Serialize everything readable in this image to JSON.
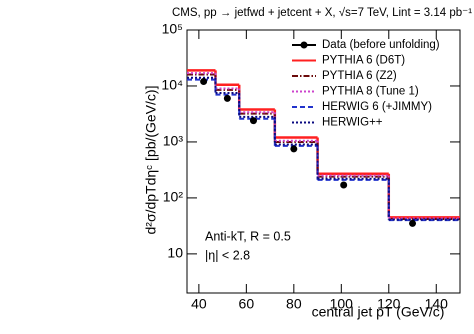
{
  "chart_data": {
    "type": "step-histogram",
    "title": "CMS, pp → jetfwd + jetcent + X, √s=7 TeV, Lint = 3.14 pb⁻¹",
    "x_label": "central jet pT (GeV/c)",
    "y_label": "d²σ/dpTdηᶜ [pb/(GeV/c)]",
    "annotations": [
      "Anti-kT, R = 0.5",
      "|η| < 2.8"
    ],
    "xlim": [
      35,
      150
    ],
    "xticks": [
      40,
      60,
      80,
      100,
      120,
      140
    ],
    "ylim": [
      2,
      100000
    ],
    "log_y": true,
    "yticks": [
      10,
      {
        "value": 100,
        "label": "10²"
      },
      {
        "value": 1000,
        "label": "10³"
      },
      {
        "value": 10000,
        "label": "10⁴"
      },
      {
        "value": 100000,
        "label": "10⁵"
      }
    ],
    "legend": "upper right",
    "bins": [
      35,
      47,
      57,
      72,
      90,
      120,
      150
    ],
    "points": {
      "name": "Data (before unfolding)",
      "color": "#000000",
      "x": [
        42,
        52,
        63,
        80,
        101,
        130
      ],
      "values": [
        12000,
        6000,
        2400,
        750,
        170,
        35
      ]
    },
    "series": [
      {
        "name": "PYTHIA 6 (D6T)",
        "color": "#ff2020",
        "dash": "solid",
        "values": [
          19000,
          10500,
          3800,
          1200,
          270,
          45
        ]
      },
      {
        "name": "PYTHIA 6 (Z2)",
        "color": "#6b0a0a",
        "dash": "dashdot",
        "values": [
          16000,
          8500,
          3200,
          1000,
          240,
          42
        ]
      },
      {
        "name": "PYTHIA 8 (Tune 1)",
        "color": "#cc44cc",
        "dash": "dotted",
        "values": [
          17000,
          9000,
          3400,
          1050,
          250,
          43
        ]
      },
      {
        "name": "HERWIG 6 (+JIMMY)",
        "color": "#2233cc",
        "dash": "dashed",
        "values": [
          13000,
          7000,
          2600,
          850,
          210,
          40
        ]
      },
      {
        "name": "HERWIG++",
        "color": "#0a0a80",
        "dash": "dotted",
        "values": [
          14000,
          7500,
          2800,
          900,
          220,
          41
        ]
      }
    ]
  }
}
